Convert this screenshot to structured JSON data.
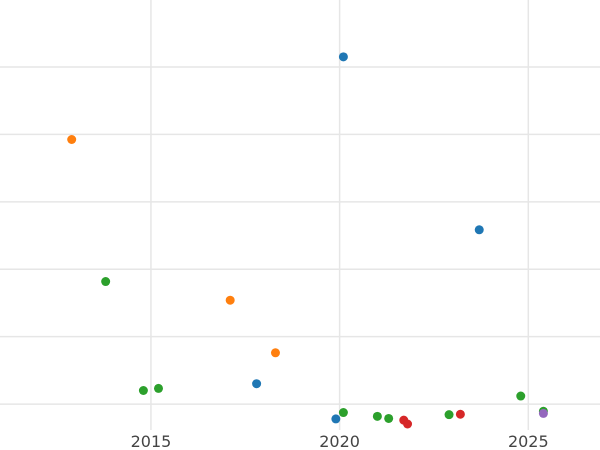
{
  "chart_data": {
    "type": "scatter",
    "title": "",
    "xlabel": "",
    "ylabel": "",
    "grid": true,
    "legend": "none",
    "xlim": [
      2011.0,
      2026.9
    ],
    "ylim": [
      0.0,
      1.0
    ],
    "x_ticks": [
      2015,
      2020,
      2025
    ],
    "x_tick_labels": [
      "2015",
      "2020",
      "2025"
    ],
    "y_gridlines": [
      0.047,
      0.206,
      0.365,
      0.524,
      0.683,
      0.842
    ],
    "series": [
      {
        "color": "#1f77b4",
        "points": [
          {
            "x": 2020.1,
            "y": 0.866
          },
          {
            "x": 2023.7,
            "y": 0.458
          },
          {
            "x": 2017.8,
            "y": 0.095
          },
          {
            "x": 2019.9,
            "y": 0.012
          }
        ]
      },
      {
        "color": "#ff7f0e",
        "points": [
          {
            "x": 2012.9,
            "y": 0.671
          },
          {
            "x": 2017.1,
            "y": 0.292
          },
          {
            "x": 2018.3,
            "y": 0.168
          }
        ]
      },
      {
        "color": "#2ca02c",
        "points": [
          {
            "x": 2013.8,
            "y": 0.336
          },
          {
            "x": 2014.8,
            "y": 0.079
          },
          {
            "x": 2015.2,
            "y": 0.084
          },
          {
            "x": 2020.1,
            "y": 0.027
          },
          {
            "x": 2021.0,
            "y": 0.018
          },
          {
            "x": 2021.3,
            "y": 0.013
          },
          {
            "x": 2022.9,
            "y": 0.022
          },
          {
            "x": 2024.8,
            "y": 0.066
          },
          {
            "x": 2025.4,
            "y": 0.03
          }
        ]
      },
      {
        "color": "#d62728",
        "points": [
          {
            "x": 2021.7,
            "y": 0.009
          },
          {
            "x": 2021.8,
            "y": 0.0
          },
          {
            "x": 2023.2,
            "y": 0.023
          }
        ]
      },
      {
        "color": "#9467bd",
        "points": [
          {
            "x": 2025.4,
            "y": 0.025
          }
        ]
      }
    ]
  }
}
